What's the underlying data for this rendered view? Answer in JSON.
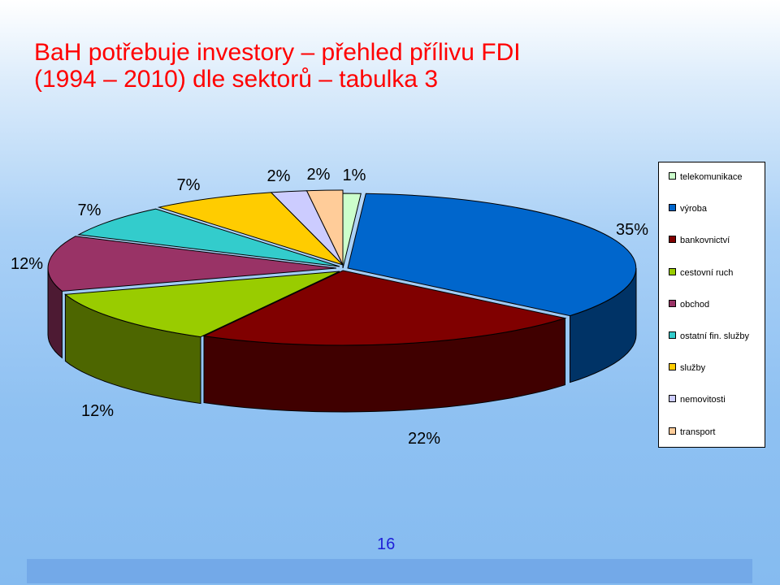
{
  "title_lines": [
    "BaH potřebuje investory – přehled přílivu FDI",
    "(1994 – 2010) dle sektorů – tabulka 3"
  ],
  "page_number": "16",
  "chart_data": {
    "type": "pie",
    "style": "3d-exploded-oval",
    "title": "",
    "legend_placement": "right",
    "categories": [
      "telekomunikace",
      "výroba",
      "bankovnictví",
      "cestovní ruch",
      "obchod",
      "ostatní fin. služby",
      "služby",
      "nemovitosti",
      "transport"
    ],
    "values": [
      1,
      35,
      22,
      12,
      12,
      7,
      7,
      2,
      2
    ],
    "labels": [
      "1%",
      "35%",
      "22%",
      "12%",
      "12%",
      "7%",
      "7%",
      "2%",
      "2%"
    ],
    "colors": [
      "#ccffcc",
      "#0066cc",
      "#800000",
      "#99cc00",
      "#993366",
      "#33cccc",
      "#ffcc00",
      "#ccccff",
      "#ffcc99"
    ],
    "side_colors": [
      "#7f9f7f",
      "#003366",
      "#400000",
      "#4d6600",
      "#4d1a33",
      "#1a6666",
      "#806600",
      "#666680",
      "#80664d"
    ]
  }
}
